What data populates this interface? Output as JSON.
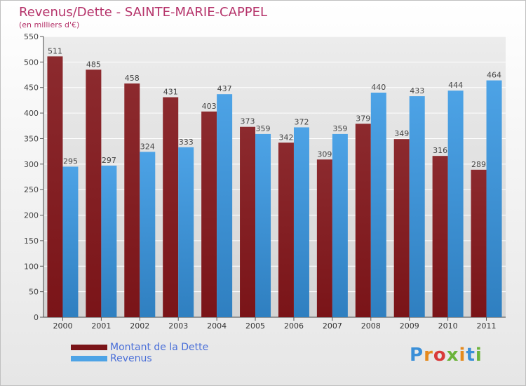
{
  "header": {
    "title": "Revenus/Dette - SAINTE-MARIE-CAPPEL",
    "subtitle": "(en milliers d'€)"
  },
  "legend": {
    "dette_label": "Montant de la Dette",
    "revenus_label": "Revenus"
  },
  "logo": {
    "text": "Proxiti"
  },
  "colors": {
    "dette": "#7a1418",
    "dette_light": "#8c2a2e",
    "revenus": "#4da3e6",
    "revenus_dark": "#2f7fc0"
  },
  "chart_data": {
    "type": "bar",
    "title": "Revenus/Dette - SAINTE-MARIE-CAPPEL",
    "ylabel": "(en milliers d'€)",
    "xlabel": "",
    "ylim": [
      0,
      550
    ],
    "yticks": [
      0,
      50,
      100,
      150,
      200,
      250,
      300,
      350,
      400,
      450,
      500,
      550
    ],
    "grid": true,
    "legend_position": "bottom-left",
    "categories": [
      "2000",
      "2001",
      "2002",
      "2003",
      "2004",
      "2005",
      "2006",
      "2007",
      "2008",
      "2009",
      "2010",
      "2011"
    ],
    "series": [
      {
        "name": "Montant de la Dette",
        "values": [
          511,
          485,
          458,
          431,
          403,
          373,
          342,
          309,
          379,
          349,
          316,
          289
        ]
      },
      {
        "name": "Revenus",
        "values": [
          295,
          297,
          324,
          333,
          437,
          359,
          372,
          359,
          440,
          433,
          444,
          464
        ]
      }
    ]
  }
}
